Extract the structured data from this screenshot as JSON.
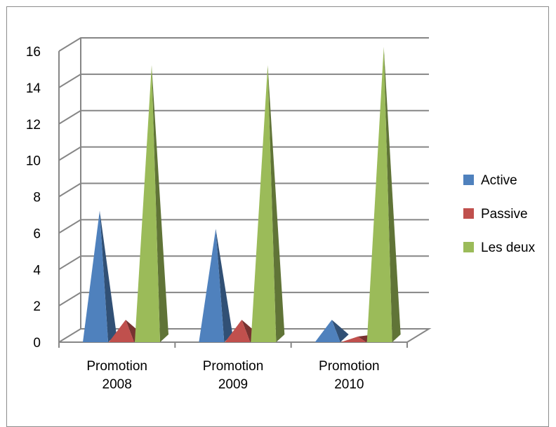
{
  "chart_data": {
    "type": "bar",
    "style": "3d-pyramid",
    "categories": [
      [
        "Promotion",
        "2008"
      ],
      [
        "Promotion",
        "2009"
      ],
      [
        "Promotion",
        "2010"
      ]
    ],
    "series": [
      {
        "name": "Active",
        "values": [
          7,
          6,
          1
        ],
        "color": "#4f81bd"
      },
      {
        "name": "Passive",
        "values": [
          1,
          1,
          0
        ],
        "color": "#c0504d"
      },
      {
        "name": "Les deux",
        "values": [
          15,
          15,
          16
        ],
        "color": "#9bbb59"
      }
    ],
    "ylim": [
      0,
      16
    ],
    "yticks": [
      "0",
      "2",
      "4",
      "6",
      "8",
      "10",
      "12",
      "14",
      "16"
    ],
    "grid": true,
    "legend_position": "right"
  }
}
